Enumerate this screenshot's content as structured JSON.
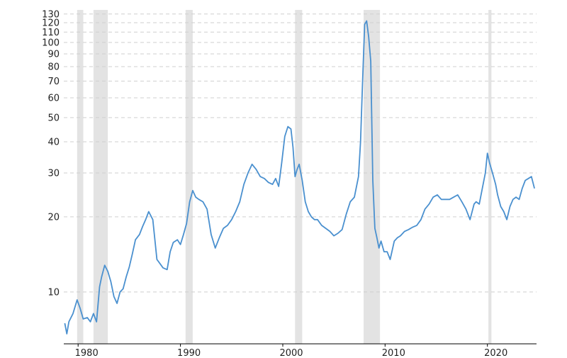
{
  "chart_data": {
    "type": "line",
    "title": "",
    "xlabel": "",
    "ylabel": "",
    "y_scale": "log",
    "xlim": [
      1978.6,
      2024.8
    ],
    "ylim": [
      6.2,
      135
    ],
    "y_ticks": [
      10,
      20,
      30,
      40,
      50,
      60,
      70,
      80,
      90,
      100,
      110,
      120,
      130
    ],
    "y_tick_labels": [
      "10",
      "20",
      "30",
      "40",
      "50",
      "60",
      "70",
      "80",
      "90",
      "100",
      "110",
      "120",
      "130"
    ],
    "x_ticks": [
      1980,
      1990,
      2000,
      2010,
      2020
    ],
    "x_tick_labels": [
      "1980",
      "1990",
      "2000",
      "2010",
      "2020"
    ],
    "grid": "horizontal dashed",
    "legend": "none",
    "colors": {
      "line": "#4a90cf",
      "recession": "#e3e3e3",
      "grid": "#cfcfcf"
    },
    "recessions": [
      {
        "start": 1979.9,
        "end": 1980.5
      },
      {
        "start": 1981.5,
        "end": 1982.9
      },
      {
        "start": 1990.5,
        "end": 1991.2
      },
      {
        "start": 2001.2,
        "end": 2001.9
      },
      {
        "start": 2007.9,
        "end": 2009.5
      },
      {
        "start": 2020.1,
        "end": 2020.4
      }
    ],
    "series": [
      {
        "x": [
          1978.7,
          1978.9,
          1979.1,
          1979.5,
          1979.9,
          1980.2,
          1980.5,
          1980.9,
          1981.2,
          1981.5,
          1981.8,
          1982.1,
          1982.3,
          1982.6,
          1982.9,
          1983.2,
          1983.5,
          1983.8,
          1984.1,
          1984.4,
          1984.7,
          1985.0,
          1985.3,
          1985.6,
          1986.0,
          1986.3,
          1986.6,
          1986.9,
          1987.3,
          1987.7,
          1988.0,
          1988.3,
          1988.7,
          1989.0,
          1989.3,
          1989.7,
          1990.0,
          1990.3,
          1990.6,
          1990.9,
          1991.2,
          1991.5,
          1991.8,
          1992.2,
          1992.6,
          1993.0,
          1993.4,
          1993.8,
          1994.2,
          1994.6,
          1995.0,
          1995.4,
          1995.8,
          1996.2,
          1996.6,
          1997.0,
          1997.4,
          1997.8,
          1998.2,
          1998.6,
          1999.0,
          1999.3,
          1999.6,
          1999.9,
          2000.2,
          2000.5,
          2000.8,
          2001.0,
          2001.2,
          2001.4,
          2001.6,
          2001.9,
          2002.2,
          2002.5,
          2002.8,
          2003.1,
          2003.4,
          2003.8,
          2004.2,
          2004.6,
          2005.0,
          2005.4,
          2005.8,
          2006.2,
          2006.6,
          2007.0,
          2007.4,
          2007.6,
          2007.8,
          2008.0,
          2008.2,
          2008.4,
          2008.6,
          2008.8,
          2009.0,
          2009.2,
          2009.4,
          2009.6,
          2009.9,
          2010.2,
          2010.5,
          2010.9,
          2011.2,
          2011.5,
          2011.9,
          2012.3,
          2012.7,
          2013.1,
          2013.5,
          2013.9,
          2014.3,
          2014.7,
          2015.1,
          2015.5,
          2015.9,
          2016.3,
          2016.7,
          2017.1,
          2017.5,
          2017.9,
          2018.3,
          2018.7,
          2018.9,
          2019.2,
          2019.5,
          2019.8,
          2020.0,
          2020.2,
          2020.5,
          2020.8,
          2021.0,
          2021.3,
          2021.6,
          2021.9,
          2022.2,
          2022.5,
          2022.8,
          2023.1,
          2023.4,
          2023.7,
          2024.0,
          2024.3,
          2024.6
        ],
        "values": [
          7.5,
          6.8,
          7.6,
          8.2,
          9.3,
          8.6,
          7.8,
          7.9,
          7.6,
          8.2,
          7.6,
          10.5,
          11.5,
          12.8,
          12.1,
          11.0,
          9.6,
          9.0,
          10.0,
          10.3,
          11.5,
          12.6,
          14.2,
          16.2,
          17.0,
          18.3,
          19.5,
          21.0,
          19.5,
          13.5,
          13.0,
          12.5,
          12.3,
          14.5,
          15.8,
          16.2,
          15.5,
          17.0,
          18.8,
          23.0,
          25.5,
          24.0,
          23.5,
          23.0,
          21.5,
          17.0,
          15.0,
          16.5,
          18.0,
          18.5,
          19.5,
          21.0,
          23.0,
          27.0,
          30.0,
          32.5,
          31.0,
          29.0,
          28.5,
          27.5,
          27.0,
          28.5,
          26.5,
          33.0,
          42.0,
          46.0,
          45.0,
          38.0,
          29.0,
          31.0,
          32.5,
          28.0,
          23.0,
          21.0,
          20.0,
          19.5,
          19.5,
          18.5,
          18.0,
          17.5,
          16.8,
          17.2,
          17.8,
          20.5,
          23.0,
          24.0,
          29.0,
          40.0,
          70.0,
          118.0,
          122.0,
          105.0,
          84.0,
          28.0,
          18.0,
          16.5,
          15.0,
          16.0,
          14.5,
          14.5,
          13.5,
          16.0,
          16.5,
          16.8,
          17.5,
          17.8,
          18.2,
          18.5,
          19.5,
          21.5,
          22.5,
          24.0,
          24.5,
          23.5,
          23.5,
          23.5,
          24.0,
          24.5,
          23.0,
          21.5,
          19.5,
          22.5,
          23.0,
          22.5,
          26.0,
          30.0,
          36.0,
          33.0,
          30.0,
          27.0,
          24.5,
          22.0,
          21.0,
          19.5,
          22.0,
          23.5,
          24.0,
          23.5,
          26.0,
          28.0,
          28.5,
          29.0,
          26.0
        ]
      }
    ]
  }
}
